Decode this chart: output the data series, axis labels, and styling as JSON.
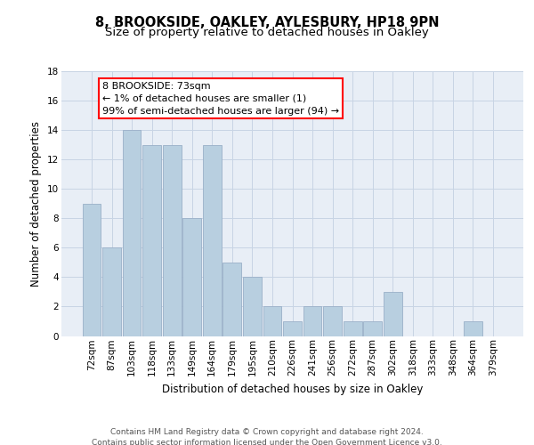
{
  "title_line1": "8, BROOKSIDE, OAKLEY, AYLESBURY, HP18 9PN",
  "title_line2": "Size of property relative to detached houses in Oakley",
  "xlabel": "Distribution of detached houses by size in Oakley",
  "ylabel": "Number of detached properties",
  "categories": [
    "72sqm",
    "87sqm",
    "103sqm",
    "118sqm",
    "133sqm",
    "149sqm",
    "164sqm",
    "179sqm",
    "195sqm",
    "210sqm",
    "226sqm",
    "241sqm",
    "256sqm",
    "272sqm",
    "287sqm",
    "302sqm",
    "318sqm",
    "333sqm",
    "348sqm",
    "364sqm",
    "379sqm"
  ],
  "values": [
    9,
    6,
    14,
    13,
    13,
    8,
    13,
    5,
    4,
    2,
    1,
    2,
    2,
    1,
    1,
    3,
    0,
    0,
    0,
    1,
    0
  ],
  "bar_color": "#b8cfe0",
  "bar_edge_color": "#9ab0c8",
  "annotation_text": "8 BROOKSIDE: 73sqm\n← 1% of detached houses are smaller (1)\n99% of semi-detached houses are larger (94) →",
  "annotation_box_color": "white",
  "annotation_box_edge_color": "red",
  "ylim": [
    0,
    18
  ],
  "yticks": [
    0,
    2,
    4,
    6,
    8,
    10,
    12,
    14,
    16,
    18
  ],
  "grid_color": "#c8d4e4",
  "background_color": "#e8eef6",
  "footer_text": "Contains HM Land Registry data © Crown copyright and database right 2024.\nContains public sector information licensed under the Open Government Licence v3.0.",
  "title_fontsize": 10.5,
  "subtitle_fontsize": 9.5,
  "annotation_fontsize": 8,
  "xlabel_fontsize": 8.5,
  "ylabel_fontsize": 8.5,
  "tick_fontsize": 7.5,
  "footer_fontsize": 6.5
}
